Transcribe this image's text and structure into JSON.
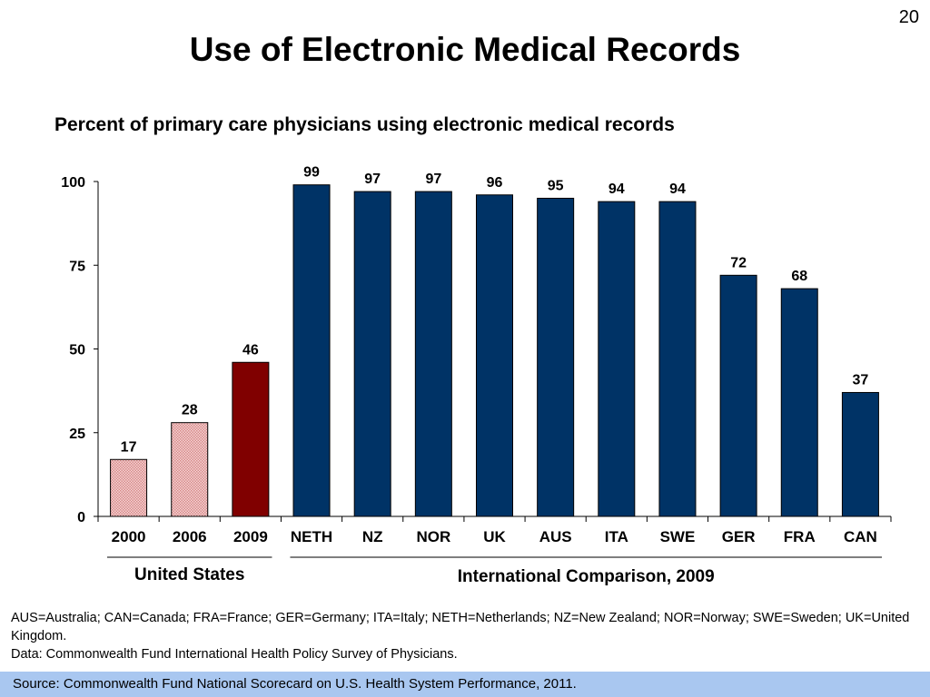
{
  "slide": {
    "number": "20",
    "title": "Use of Electronic Medical Records"
  },
  "chart_data": {
    "type": "bar",
    "title": "Percent of primary care physicians using electronic medical records",
    "xlabel": "",
    "ylabel": "",
    "categories": [
      "2000",
      "2006",
      "2009",
      "NETH",
      "NZ",
      "NOR",
      "UK",
      "AUS",
      "ITA",
      "SWE",
      "GER",
      "FRA",
      "CAN"
    ],
    "values": [
      17,
      28,
      46,
      99,
      97,
      97,
      96,
      95,
      94,
      94,
      72,
      68,
      37
    ],
    "ylim": [
      0,
      100
    ],
    "yticks": [
      0,
      25,
      50,
      75,
      100
    ],
    "grid": false,
    "legend": "none",
    "bar_styles": [
      "pink-hatched",
      "pink-hatched",
      "dark-red",
      "navy",
      "navy",
      "navy",
      "navy",
      "navy",
      "navy",
      "navy",
      "navy",
      "navy",
      "navy"
    ],
    "colors": {
      "pink_hatched": "#e8a3a3",
      "dark_red": "#800000",
      "navy": "#003366"
    },
    "groups": [
      {
        "label": "United States",
        "start": 0,
        "end": 2
      },
      {
        "label": "International Comparison, 2009",
        "start": 3,
        "end": 12
      }
    ]
  },
  "footnotes": {
    "abbreviations": "AUS=Australia; CAN=Canada; FRA=France; GER=Germany; ITA=Italy; NETH=Netherlands; NZ=New Zealand; NOR=Norway; SWE=Sweden; UK=United Kingdom.",
    "data_source": "Data: Commonwealth Fund International Health Policy Survey of Physicians."
  },
  "source": "Source: Commonwealth Fund National Scorecard on U.S. Health System Performance, 2011."
}
